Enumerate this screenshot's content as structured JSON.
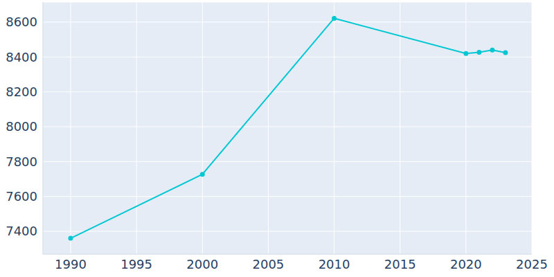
{
  "chart_data": {
    "type": "line",
    "x": [
      1990,
      2000,
      2010,
      2020,
      2021,
      2022,
      2023
    ],
    "values": [
      7360,
      7727,
      8622,
      8420,
      8427,
      8440,
      8425
    ],
    "color": "#00c8d2",
    "xlim": [
      1987.9,
      2025
    ],
    "xticks": [
      1990,
      1995,
      2000,
      2005,
      2010,
      2015,
      2020,
      2025
    ],
    "ylim": [
      7269,
      8715
    ],
    "yticks": [
      7400,
      7600,
      7800,
      8000,
      8200,
      8400,
      8600
    ],
    "grid": true,
    "marker": "circle"
  }
}
